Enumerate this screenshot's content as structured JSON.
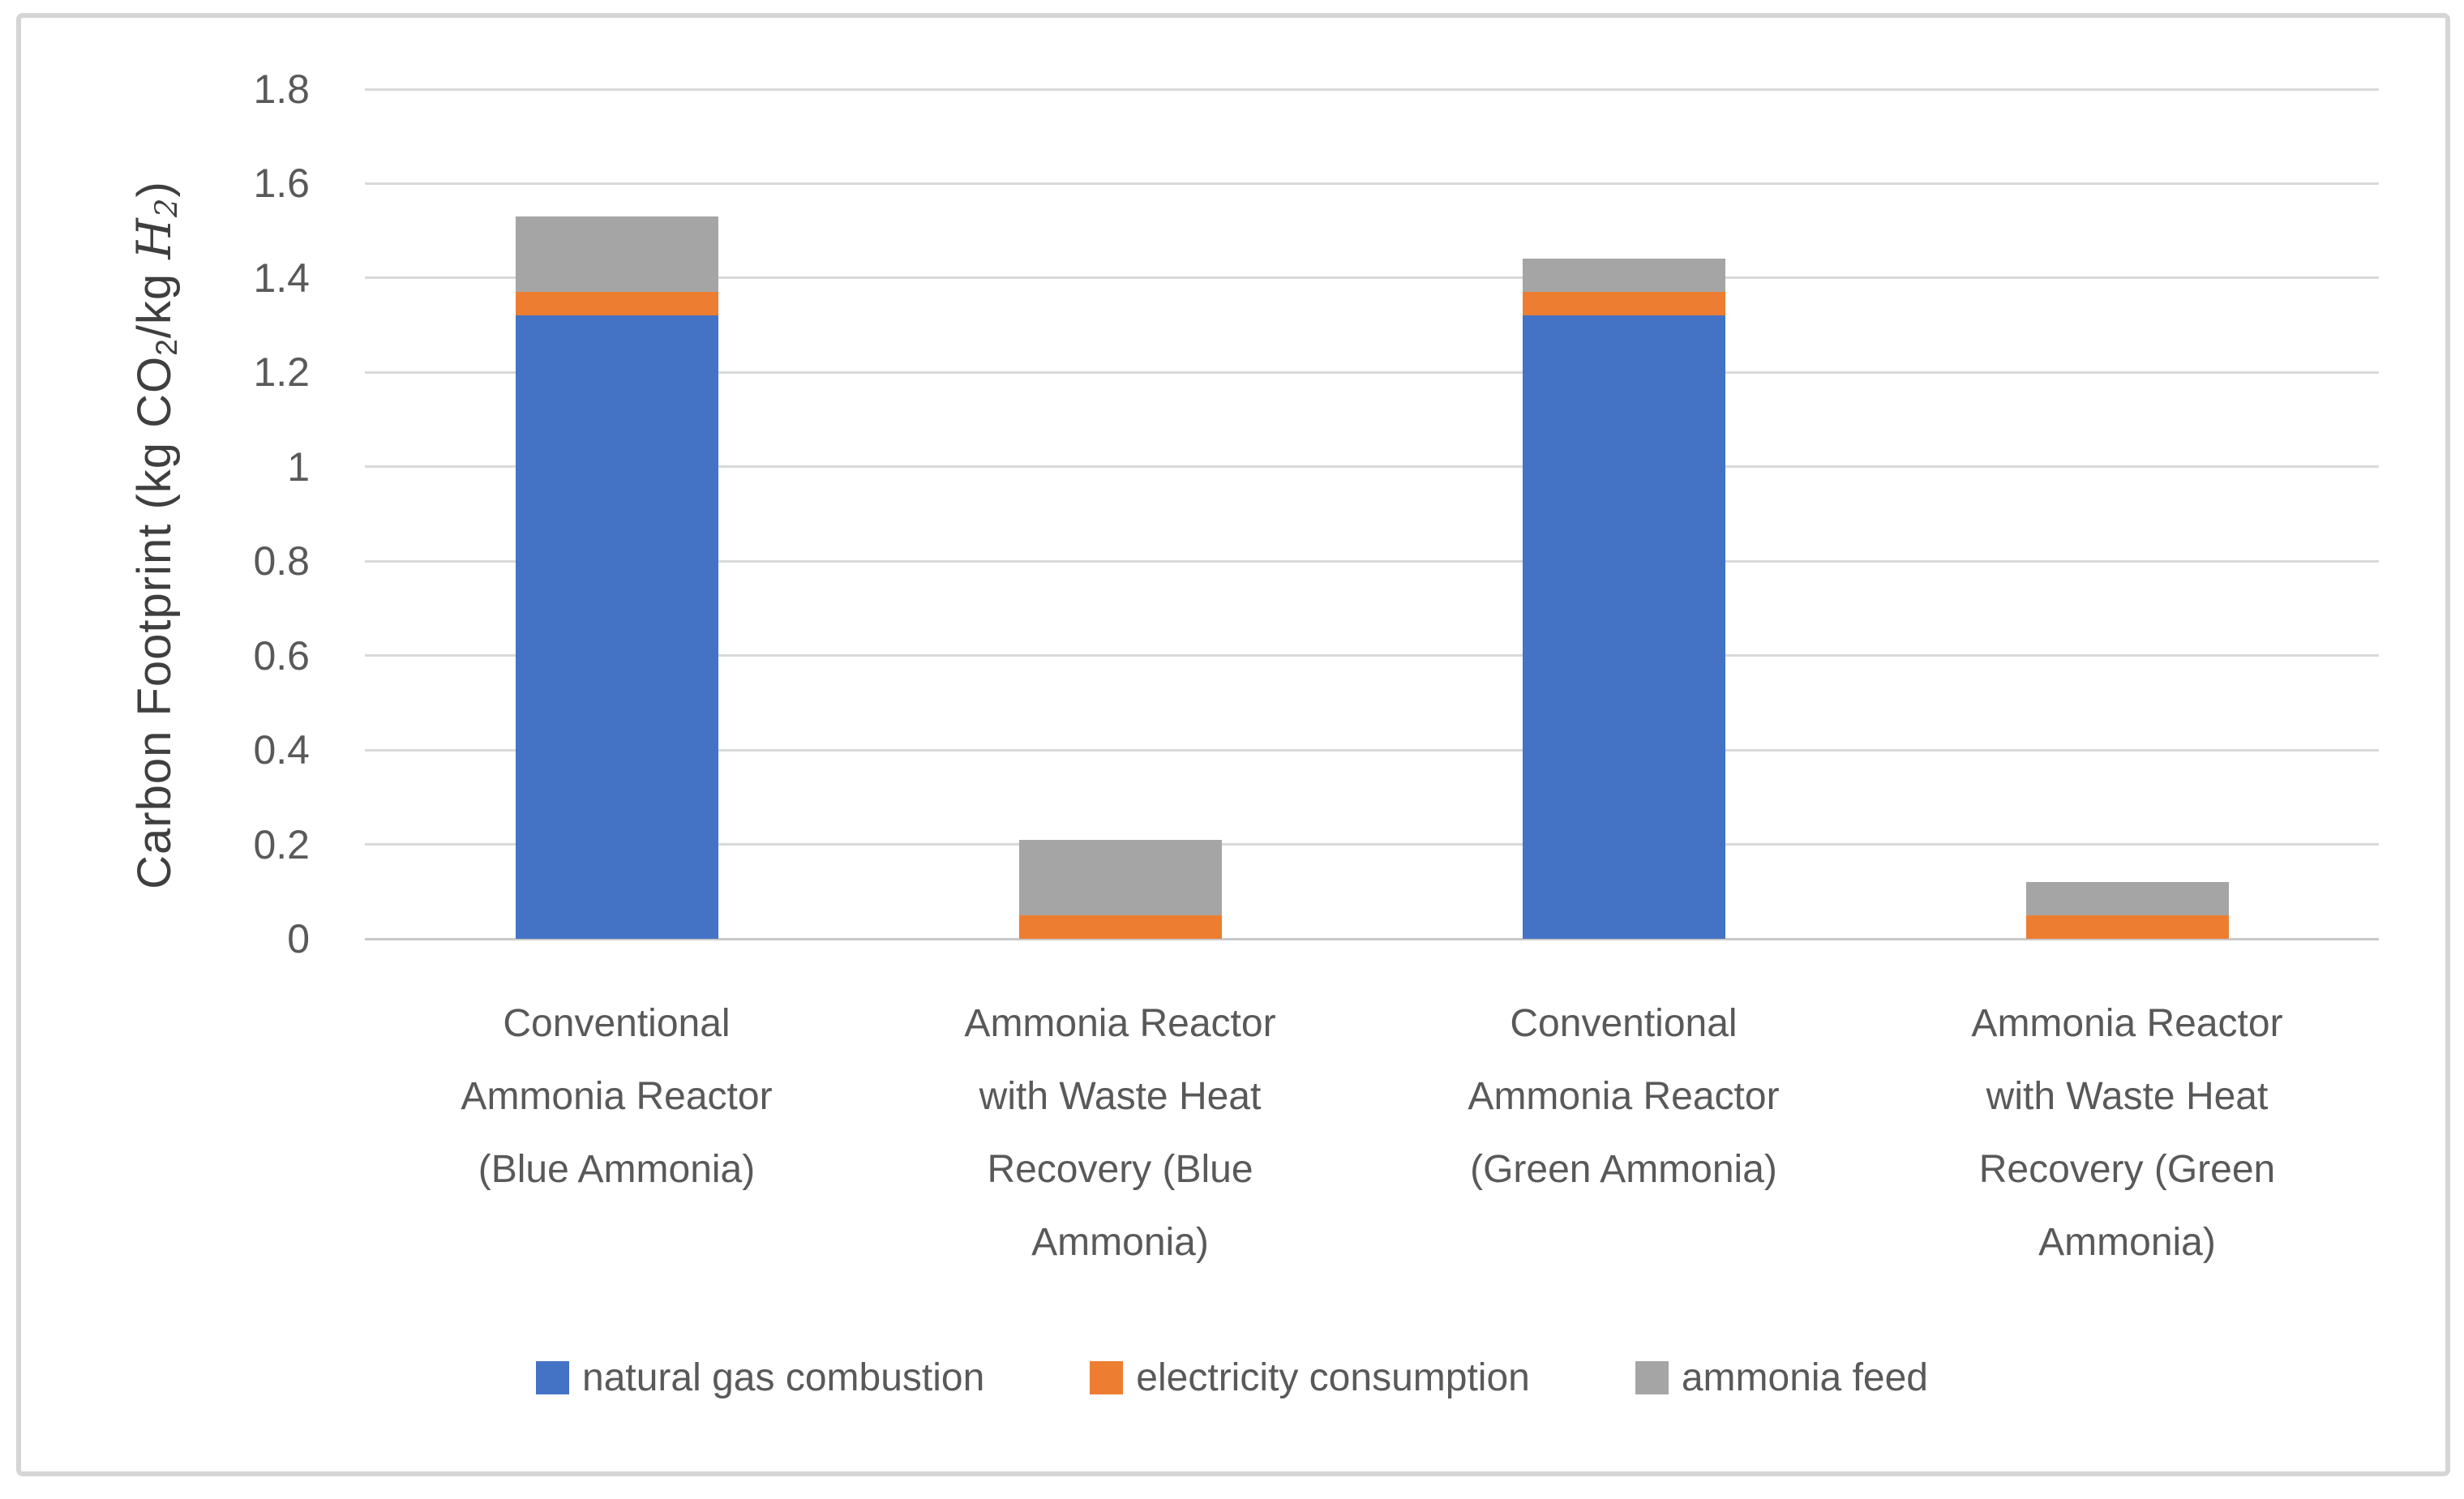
{
  "chart_data": {
    "type": "bar",
    "stacked": true,
    "title": "",
    "xlabel": "",
    "ylabel_text": "Carbon Footprint (kg CO2/kg H2)",
    "ylabel_segments": [
      {
        "t": "Carbon Footprint (kg CO",
        "style": "normal"
      },
      {
        "t": "2",
        "style": "sub"
      },
      {
        "t": "/kg ",
        "style": "normal"
      },
      {
        "t": "H",
        "style": "math-italic"
      },
      {
        "t": "2",
        "style": "math-italic-sub"
      },
      {
        "t": ")",
        "style": "normal"
      }
    ],
    "ylim": [
      0,
      1.8
    ],
    "y_tick_step": 0.2,
    "y_ticks": [
      "1.8",
      "1.6",
      "1.4",
      "1.2",
      "1",
      "0.8",
      "0.6",
      "0.4",
      "0.2",
      "0"
    ],
    "grid": "horizontal",
    "legend_position": "bottom",
    "categories": [
      {
        "lines": [
          "Conventional",
          "Ammonia Reactor",
          "(Blue Ammonia)"
        ]
      },
      {
        "lines": [
          "Ammonia Reactor",
          "with Waste Heat",
          "Recovery (Blue",
          "Ammonia)"
        ]
      },
      {
        "lines": [
          "Conventional",
          "Ammonia Reactor",
          "(Green Ammonia)"
        ]
      },
      {
        "lines": [
          "Ammonia Reactor",
          "with Waste Heat",
          "Recovery (Green",
          "Ammonia)"
        ]
      }
    ],
    "series": [
      {
        "name": "natural gas combustion",
        "color": "#4472C4",
        "values": [
          1.32,
          0,
          1.32,
          0
        ]
      },
      {
        "name": "electricity consumption",
        "color": "#ED7D31",
        "values": [
          0.05,
          0.05,
          0.05,
          0.05
        ]
      },
      {
        "name": "ammonia feed",
        "color": "#A5A5A5",
        "values": [
          0.16,
          0.16,
          0.07,
          0.07
        ]
      }
    ],
    "category_totals": [
      1.53,
      0.21,
      1.44,
      0.12
    ]
  },
  "style_colors": {
    "background": "#FFFFFF",
    "border": "#D5D5D5",
    "gridline": "#D9D9D9",
    "axis_line": "#C9C9C9",
    "tick_text": "#595959",
    "category_text": "#595959",
    "legend_text": "#595959",
    "ytitle_text": "#3F3F3F"
  }
}
